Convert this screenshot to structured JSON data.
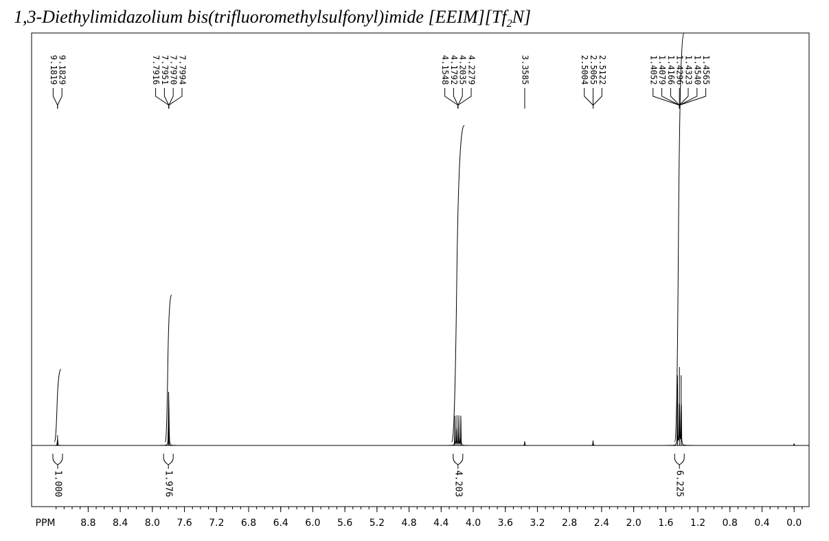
{
  "title": {
    "main": "1,3-Diethylimidazolium bis(trifluoromethylsulfonyl)imide [EEIM][Tf",
    "subscript": "2",
    "suffix": "N]"
  },
  "chart_data": {
    "type": "line",
    "xlabel": "PPM",
    "xlim": [
      9.3,
      -0.25
    ],
    "ylim": [
      0,
      1
    ],
    "x_axis_reversed": true,
    "grid": false,
    "ticks": [
      "8.8",
      "8.4",
      "8.0",
      "7.6",
      "7.2",
      "6.8",
      "6.4",
      "6.0",
      "5.6",
      "5.2",
      "4.8",
      "4.4",
      "4.0",
      "3.6",
      "3.2",
      "2.8",
      "2.4",
      "2.0",
      "1.6",
      "1.2",
      "0.8",
      "0.4",
      "0.0"
    ],
    "peak_labels": [
      {
        "group": [
          "9.1819",
          "9.1829"
        ],
        "target_ppm": 9.182
      },
      {
        "group": [
          "7.7916",
          "7.7951",
          "7.7970",
          "7.7994"
        ],
        "target_ppm": 7.795
      },
      {
        "group": [
          "4.1548",
          "4.1792",
          "4.2035",
          "4.2279"
        ],
        "target_ppm": 4.19
      },
      {
        "group": [
          "3.3585"
        ],
        "target_ppm": 3.3585
      },
      {
        "group": [
          "2.5004",
          "2.5065",
          "2.5122"
        ],
        "target_ppm": 2.506
      },
      {
        "group": [
          "1.4052",
          "1.4079",
          "1.4166",
          "1.4296",
          "1.4323",
          "1.4540",
          "1.4565"
        ],
        "target_ppm": 1.43
      }
    ],
    "peaks": [
      {
        "ppm": 9.182,
        "height": 0.025
      },
      {
        "ppm": 7.7916,
        "height": 0.04
      },
      {
        "ppm": 7.7951,
        "height": 0.07
      },
      {
        "ppm": 7.797,
        "height": 0.07
      },
      {
        "ppm": 7.7994,
        "height": 0.04
      },
      {
        "ppm": 4.1548,
        "height": 0.072
      },
      {
        "ppm": 4.1792,
        "height": 0.073
      },
      {
        "ppm": 4.2035,
        "height": 0.073
      },
      {
        "ppm": 4.2279,
        "height": 0.072
      },
      {
        "ppm": 3.3585,
        "height": 0.01
      },
      {
        "ppm": 2.5065,
        "height": 0.012
      },
      {
        "ppm": 1.4079,
        "height": 0.17
      },
      {
        "ppm": 1.4296,
        "height": 0.19
      },
      {
        "ppm": 1.454,
        "height": 0.17
      },
      {
        "ppm": 0.0,
        "height": 0.005
      }
    ],
    "integrals": [
      {
        "ppm_start": 9.22,
        "ppm_end": 9.14,
        "value": "1.000",
        "curve_height": 0.185
      },
      {
        "ppm_start": 7.84,
        "ppm_end": 7.76,
        "value": "1.976",
        "curve_height": 0.365
      },
      {
        "ppm_start": 4.27,
        "ppm_end": 4.11,
        "value": "4.203",
        "curve_height": 0.776
      },
      {
        "ppm_start": 1.49,
        "ppm_end": 1.37,
        "value": "6.225",
        "curve_height": 1.0
      }
    ]
  }
}
